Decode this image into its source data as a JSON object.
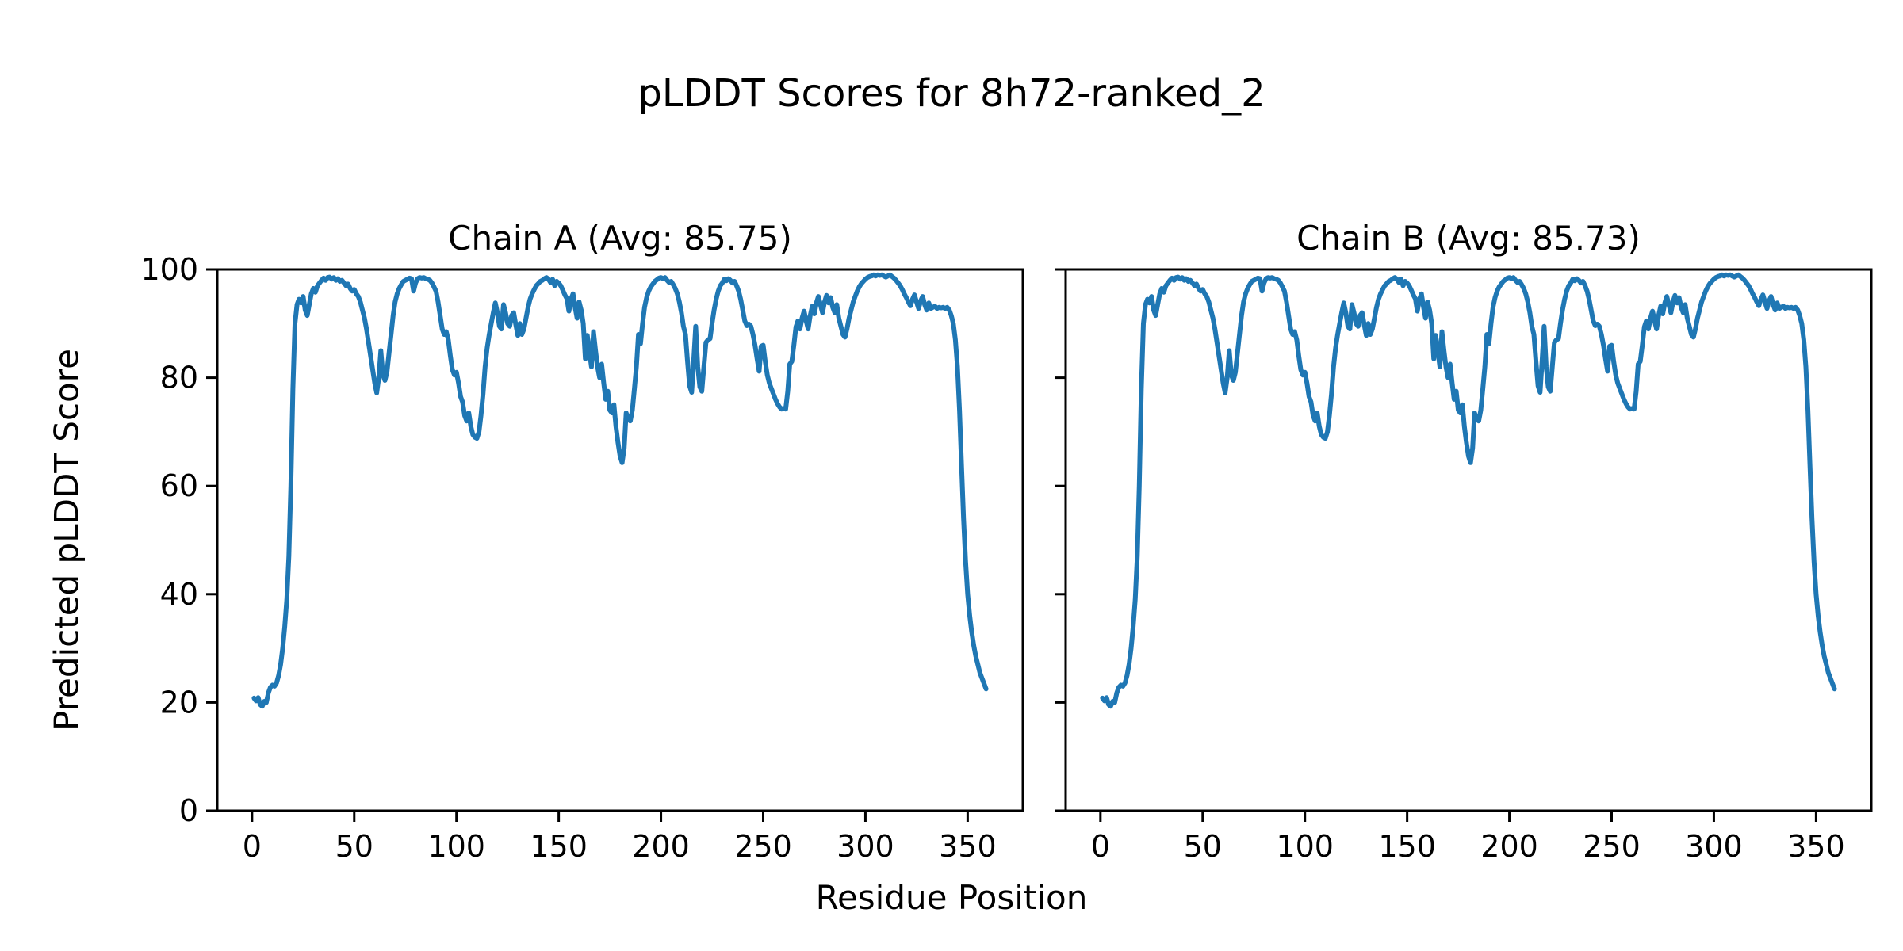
{
  "figure": {
    "title": "pLDDT Scores for 8h72-ranked_2",
    "xlabel": "Residue Position",
    "ylabel": "Predicted pLDDT Score",
    "background_color": "#ffffff",
    "text_color": "#000000",
    "spine_color": "#000000"
  },
  "chart_data": [
    {
      "type": "line",
      "title": "Chain A (Avg: 85.75)",
      "avg_plddt": 85.75,
      "line_color": "#1f77b4",
      "xlim": [
        -17,
        377
      ],
      "ylim": [
        0,
        100
      ],
      "xticks": [
        0,
        50,
        100,
        150,
        200,
        250,
        300,
        350
      ],
      "yticks": [
        0,
        20,
        40,
        60,
        80,
        100
      ],
      "show_ytick_labels": true,
      "grid": false,
      "legend": false,
      "x_start": 1,
      "y": [
        20.8,
        20.3,
        20.9,
        19.6,
        19.3,
        20.2,
        20.0,
        21.8,
        22.8,
        23.2,
        23.0,
        23.6,
        25.0,
        27.0,
        30.0,
        34.0,
        39.0,
        47.0,
        60.0,
        78.0,
        90.0,
        93.5,
        94.5,
        93.8,
        95.0,
        92.5,
        91.5,
        93.5,
        95.5,
        96.5,
        95.8,
        97.0,
        97.5,
        98.0,
        98.4,
        98.0,
        98.5,
        98.6,
        98.2,
        98.5,
        98.0,
        98.3,
        97.8,
        98.0,
        97.5,
        97.0,
        97.3,
        96.5,
        96.0,
        96.3,
        95.5,
        95.0,
        94.0,
        92.5,
        91.0,
        89.0,
        86.5,
        84.0,
        81.5,
        79.0,
        77.2,
        80.0,
        85.0,
        80.5,
        79.5,
        81.0,
        84.5,
        88.0,
        91.5,
        94.0,
        95.5,
        96.5,
        97.2,
        97.8,
        98.0,
        98.2,
        98.4,
        98.3,
        96.0,
        97.5,
        98.3,
        98.5,
        98.4,
        98.5,
        98.3,
        98.2,
        98.0,
        97.5,
        96.8,
        96.0,
        94.0,
        91.5,
        89.0,
        88.0,
        88.5,
        87.0,
        84.0,
        81.5,
        80.5,
        81.0,
        79.0,
        76.5,
        75.5,
        73.0,
        72.0,
        73.5,
        71.0,
        69.5,
        69.0,
        68.8,
        70.0,
        73.0,
        77.0,
        82.0,
        85.5,
        88.0,
        90.0,
        92.0,
        93.8,
        92.0,
        89.5,
        89.0,
        93.5,
        92.0,
        90.0,
        89.5,
        91.5,
        92.0,
        89.8,
        87.8,
        90.0,
        88.0,
        89.0,
        91.0,
        93.0,
        94.5,
        95.5,
        96.3,
        97.0,
        97.4,
        97.8,
        98.0,
        98.3,
        98.5,
        98.2,
        97.6,
        98.2,
        97.0,
        97.8,
        97.5,
        97.0,
        96.2,
        95.3,
        94.6,
        92.3,
        94.5,
        95.5,
        93.0,
        91.0,
        94.0,
        92.5,
        90.0,
        83.5,
        87.8,
        85.0,
        82.0,
        88.5,
        85.0,
        82.0,
        80.0,
        82.5,
        79.0,
        76.0,
        77.5,
        74.0,
        73.5,
        75.0,
        71.0,
        68.0,
        65.5,
        64.3,
        67.0,
        73.5,
        72.3,
        72.0,
        74.0,
        78.0,
        82.0,
        88.0,
        86.3,
        90.0,
        93.0,
        94.8,
        96.0,
        96.8,
        97.3,
        97.8,
        98.1,
        98.4,
        98.5,
        98.3,
        98.5,
        98.0,
        97.6,
        97.8,
        97.2,
        96.5,
        95.5,
        94.0,
        92.0,
        89.5,
        88.0,
        83.0,
        78.5,
        77.3,
        83.0,
        89.5,
        82.0,
        78.3,
        77.5,
        82.0,
        86.5,
        87.0,
        87.2,
        90.0,
        92.5,
        94.5,
        96.0,
        97.0,
        97.5,
        98.2,
        97.9,
        98.3,
        98.0,
        97.5,
        97.8,
        97.0,
        96.0,
        94.5,
        92.5,
        90.5,
        89.6,
        89.9,
        89.5,
        88.0,
        86.0,
        83.5,
        81.2,
        85.8,
        86.0,
        83.0,
        80.5,
        79.0,
        78.0,
        77.0,
        76.0,
        75.2,
        74.6,
        74.2,
        74.3,
        74.2,
        77.5,
        82.5,
        83.0,
        86.0,
        89.4,
        90.5,
        89.0,
        91.0,
        92.3,
        90.5,
        89.0,
        91.5,
        93.2,
        91.8,
        93.8,
        95.0,
        93.5,
        92.0,
        94.0,
        95.2,
        93.8,
        94.8,
        93.0,
        92.0,
        93.5,
        91.0,
        89.5,
        88.0,
        87.5,
        89.0,
        91.0,
        92.5,
        94.0,
        95.0,
        96.0,
        96.8,
        97.4,
        97.8,
        98.2,
        98.5,
        98.7,
        98.8,
        99.0,
        98.8,
        99.0,
        98.9,
        99.0,
        98.8,
        98.6,
        98.8,
        99.0,
        98.7,
        98.4,
        98.0,
        97.5,
        97.0,
        96.3,
        95.5,
        94.8,
        94.0,
        93.3,
        94.5,
        95.3,
        94.0,
        92.8,
        94.2,
        95.0,
        93.5,
        92.5,
        93.8,
        92.8,
        93.0,
        93.2,
        92.8,
        93.0,
        92.9,
        93.0,
        92.8,
        93.0,
        92.5,
        91.5,
        90.0,
        87.0,
        82.0,
        74.0,
        64.0,
        54.0,
        46.0,
        40.0,
        36.0,
        33.0,
        30.5,
        28.5,
        27.0,
        25.5,
        24.5,
        23.5,
        22.5
      ]
    },
    {
      "type": "line",
      "title": "Chain B (Avg: 85.73)",
      "avg_plddt": 85.73,
      "line_color": "#1f77b4",
      "xlim": [
        -17,
        377
      ],
      "ylim": [
        0,
        100
      ],
      "xticks": [
        0,
        50,
        100,
        150,
        200,
        250,
        300,
        350
      ],
      "yticks": [
        0,
        20,
        40,
        60,
        80,
        100
      ],
      "show_ytick_labels": false,
      "grid": false,
      "legend": false,
      "points_same_as": 0
    }
  ]
}
